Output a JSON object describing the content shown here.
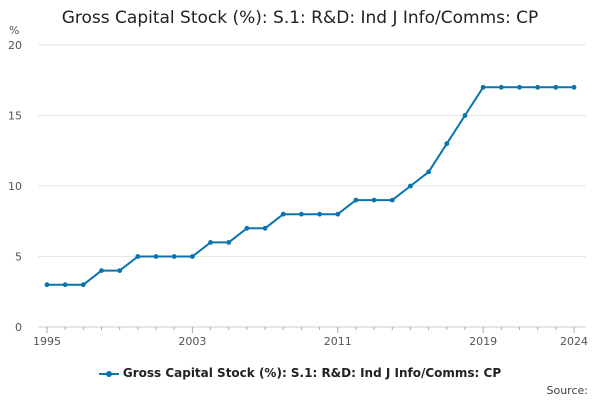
{
  "chart_data": {
    "type": "line",
    "title": "Gross Capital Stock (%): S.1: R&D: Ind J Info/Comms: CP",
    "ylabel": "%",
    "xlabel": "",
    "ylim": [
      0,
      20
    ],
    "yticks": [
      0,
      5,
      10,
      15,
      20
    ],
    "xlim": [
      1995,
      2024
    ],
    "xticks": [
      1995,
      2003,
      2011,
      2019,
      2024
    ],
    "grid": true,
    "legend_position": "bottom",
    "series": [
      {
        "name": "Gross Capital Stock (%): S.1: R&D: Ind J Info/Comms: CP",
        "color": "#0a74b0",
        "x": [
          1995,
          1996,
          1997,
          1998,
          1999,
          2000,
          2001,
          2002,
          2003,
          2004,
          2005,
          2006,
          2007,
          2008,
          2009,
          2010,
          2011,
          2012,
          2013,
          2014,
          2015,
          2016,
          2017,
          2018,
          2019,
          2020,
          2021,
          2022,
          2023,
          2024
        ],
        "values": [
          3,
          3,
          3,
          4,
          4,
          5,
          5,
          5,
          5,
          6,
          6,
          7,
          7,
          8,
          8,
          8,
          8,
          9,
          9,
          9,
          10,
          11,
          13,
          15,
          17,
          17,
          17,
          17,
          17,
          17
        ]
      }
    ]
  },
  "source_label": "Source:"
}
